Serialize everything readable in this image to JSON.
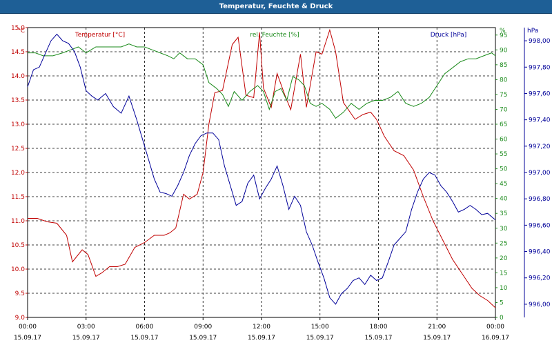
{
  "title": "Temperatur, Feuchte & Druck",
  "chart_data": {
    "type": "line",
    "title": "Temperatur, Feuchte & Druck",
    "grid": true,
    "x_ticks": [
      {
        "time": "00:00",
        "date": "15.09.17"
      },
      {
        "time": "03:00",
        "date": "15.09.17"
      },
      {
        "time": "06:00",
        "date": "15.09.17"
      },
      {
        "time": "09:00",
        "date": "15.09.17"
      },
      {
        "time": "12:00",
        "date": "15.09.17"
      },
      {
        "time": "15:00",
        "date": "15.09.17"
      },
      {
        "time": "18:00",
        "date": "15.09.17"
      },
      {
        "time": "21:00",
        "date": "15.09.17"
      },
      {
        "time": "00:00",
        "date": "16.09.17"
      }
    ],
    "x_range_hours": [
      0,
      24
    ],
    "axes": {
      "temp": {
        "label": "Temperatur [°C]",
        "unit": "°C",
        "color": "#c00000",
        "range": [
          9.0,
          15.0
        ],
        "ticks": [
          "9.0",
          "9.5",
          "10.0",
          "10.5",
          "11.0",
          "11.5",
          "12.0",
          "12.5",
          "13.0",
          "13.5",
          "14.0",
          "14.5",
          "15.0"
        ]
      },
      "hum": {
        "label": "rel. Feuchte [%]",
        "unit": "%",
        "color": "#1a8a1a",
        "range": [
          0,
          97.5
        ],
        "ticks": [
          "0",
          "5",
          "10",
          "15",
          "20",
          "25",
          "30",
          "35",
          "40",
          "45",
          "50",
          "55",
          "60",
          "65",
          "70",
          "75",
          "80",
          "85",
          "90",
          "95"
        ]
      },
      "press": {
        "label": "Druck [hPa]",
        "unit": "hPa",
        "color": "#000099",
        "range": [
          995.9,
          998.1
        ],
        "ticks": [
          "996,00",
          "996,20",
          "996,40",
          "996,60",
          "996,80",
          "997,00",
          "997,20",
          "997,40",
          "997,60",
          "997,80",
          "998,00"
        ]
      }
    },
    "series": [
      {
        "name": "Temperatur [°C]",
        "axis": "temp",
        "color": "#c00000",
        "x": [
          0,
          0.5,
          1,
          1.5,
          2,
          2.3,
          2.8,
          3.1,
          3.5,
          3.8,
          4.2,
          4.6,
          5,
          5.5,
          6,
          6.5,
          7,
          7.3,
          7.6,
          8,
          8.3,
          8.7,
          9,
          9.3,
          9.6,
          10,
          10.5,
          10.8,
          11.2,
          11.6,
          11.9,
          12.1,
          12.5,
          12.8,
          13.2,
          13.5,
          13.8,
          14,
          14.3,
          14.8,
          15.1,
          15.5,
          15.8,
          16.2,
          16.8,
          17.2,
          17.6,
          17.9,
          18.3,
          18.8,
          19.3,
          19.8,
          20.3,
          20.8,
          21.3,
          21.8,
          22.3,
          22.8,
          23.2,
          23.6,
          24
        ],
        "y": [
          11.05,
          11.05,
          10.98,
          10.95,
          10.7,
          10.15,
          10.4,
          10.3,
          9.85,
          9.92,
          10.05,
          10.05,
          10.1,
          10.45,
          10.55,
          10.7,
          10.7,
          10.75,
          10.85,
          11.55,
          11.45,
          11.55,
          12.0,
          13.0,
          13.65,
          13.7,
          14.65,
          14.8,
          13.6,
          13.55,
          14.9,
          13.75,
          13.35,
          14.05,
          13.6,
          13.3,
          14.0,
          14.45,
          13.35,
          14.5,
          14.45,
          14.95,
          14.5,
          13.45,
          13.1,
          13.2,
          13.25,
          13.1,
          12.75,
          12.45,
          12.35,
          12.05,
          11.5,
          11.0,
          10.6,
          10.2,
          9.9,
          9.6,
          9.45,
          9.35,
          9.2
        ]
      },
      {
        "name": "rel. Feuchte [%]",
        "axis": "hum",
        "color": "#1a8a1a",
        "x": [
          0,
          0.4,
          0.8,
          1.3,
          1.8,
          2.2,
          2.6,
          3,
          3.5,
          3.9,
          4.3,
          4.8,
          5.2,
          5.6,
          6,
          6.4,
          6.8,
          7.2,
          7.5,
          7.8,
          8.2,
          8.6,
          9,
          9.3,
          9.7,
          10,
          10.3,
          10.6,
          11,
          11.4,
          11.8,
          12.1,
          12.4,
          12.7,
          13,
          13.3,
          13.6,
          13.9,
          14.2,
          14.5,
          14.8,
          15.1,
          15.5,
          15.8,
          16.2,
          16.6,
          17,
          17.4,
          17.8,
          18.2,
          18.6,
          19,
          19.4,
          19.8,
          20.2,
          20.6,
          21,
          21.4,
          21.8,
          22.2,
          22.6,
          23,
          23.4,
          23.8,
          24
        ],
        "y": [
          89,
          89,
          88,
          88,
          89,
          90,
          91,
          89,
          91,
          91,
          91,
          91,
          92,
          91,
          91,
          90,
          89,
          88,
          87,
          89,
          87,
          87,
          85,
          79,
          77,
          75,
          71,
          76,
          73,
          76,
          78,
          76,
          70,
          76,
          77,
          73,
          81,
          80,
          78,
          72,
          71,
          72,
          70,
          67,
          69,
          72,
          70,
          72,
          73,
          73,
          74,
          76,
          72,
          71,
          72,
          74,
          78,
          82,
          84,
          86,
          87,
          87,
          88,
          89,
          88
        ]
      },
      {
        "name": "Druck [hPa]",
        "axis": "press",
        "color": "#000099",
        "x": [
          0,
          0.3,
          0.6,
          0.9,
          1.2,
          1.5,
          1.8,
          2.1,
          2.4,
          2.7,
          3,
          3.3,
          3.6,
          4,
          4.4,
          4.8,
          5.2,
          5.6,
          5.9,
          6.2,
          6.5,
          6.8,
          7.1,
          7.4,
          7.7,
          8,
          8.3,
          8.6,
          8.9,
          9.2,
          9.5,
          9.8,
          10.1,
          10.4,
          10.7,
          11,
          11.3,
          11.6,
          11.9,
          12.2,
          12.5,
          12.8,
          13.1,
          13.4,
          13.7,
          14,
          14.3,
          14.6,
          14.9,
          15.2,
          15.5,
          15.8,
          16.1,
          16.4,
          16.7,
          17,
          17.3,
          17.6,
          17.9,
          18.2,
          18.5,
          18.8,
          19.1,
          19.4,
          19.7,
          20,
          20.3,
          20.6,
          20.9,
          21.2,
          21.5,
          21.8,
          22.1,
          22.4,
          22.7,
          23,
          23.3,
          23.6,
          24
        ],
        "y": [
          997.65,
          997.78,
          997.8,
          997.9,
          998.0,
          998.05,
          998.0,
          997.98,
          997.92,
          997.8,
          997.62,
          997.58,
          997.55,
          997.6,
          997.5,
          997.45,
          997.58,
          997.4,
          997.25,
          997.1,
          996.95,
          996.85,
          996.84,
          996.82,
          996.9,
          997.0,
          997.13,
          997.22,
          997.28,
          997.3,
          997.3,
          997.25,
          997.05,
          996.9,
          996.75,
          996.78,
          996.92,
          996.98,
          996.8,
          996.88,
          996.95,
          997.05,
          996.9,
          996.72,
          996.82,
          996.75,
          996.55,
          996.45,
          996.32,
          996.2,
          996.05,
          996.0,
          996.08,
          996.12,
          996.18,
          996.2,
          996.15,
          996.22,
          996.18,
          996.2,
          996.32,
          996.45,
          996.5,
          996.55,
          996.72,
          996.85,
          996.95,
          997.0,
          996.98,
          996.9,
          996.85,
          996.78,
          996.7,
          996.72,
          996.75,
          996.72,
          996.68,
          996.69,
          996.64
        ]
      }
    ]
  }
}
